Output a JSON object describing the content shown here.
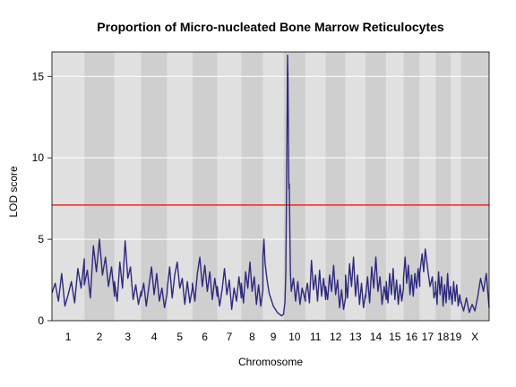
{
  "chart_data": {
    "type": "line",
    "title": "Proportion of Micro-nucleated Bone Marrow Reticulocytes",
    "xlabel": "Chromosome",
    "ylabel": "LOD score",
    "ylim": [
      0,
      16.5
    ],
    "yticks": [
      0,
      5,
      10,
      15
    ],
    "threshold": 7.1,
    "colors": {
      "line": "#2e2a7e",
      "threshold": "#e8281e",
      "band_light": "#e0e0e0",
      "band_dark": "#cfcfcf",
      "grid": "#ffffff"
    },
    "chromosomes": [
      {
        "label": "1",
        "length": 195
      },
      {
        "label": "2",
        "length": 182
      },
      {
        "label": "3",
        "length": 160
      },
      {
        "label": "4",
        "length": 157
      },
      {
        "label": "5",
        "length": 152
      },
      {
        "label": "6",
        "length": 150
      },
      {
        "label": "7",
        "length": 145
      },
      {
        "label": "8",
        "length": 130
      },
      {
        "label": "9",
        "length": 125
      },
      {
        "label": "10",
        "length": 131
      },
      {
        "label": "11",
        "length": 122
      },
      {
        "label": "12",
        "length": 120
      },
      {
        "label": "13",
        "length": 120
      },
      {
        "label": "14",
        "length": 125
      },
      {
        "label": "15",
        "length": 104
      },
      {
        "label": "16",
        "length": 98
      },
      {
        "label": "17",
        "length": 95
      },
      {
        "label": "18",
        "length": 91
      },
      {
        "label": "19",
        "length": 61
      },
      {
        "label": "X",
        "length": 171
      }
    ],
    "series": [
      {
        "profile": [
          [
            1,
            0.0,
            1.7
          ],
          [
            1,
            0.1,
            2.3
          ],
          [
            1,
            0.2,
            1.2
          ],
          [
            1,
            0.3,
            2.9
          ],
          [
            1,
            0.4,
            0.9
          ],
          [
            1,
            0.5,
            1.6
          ],
          [
            1,
            0.6,
            2.4
          ],
          [
            1,
            0.7,
            1.1
          ],
          [
            1,
            0.8,
            3.2
          ],
          [
            1,
            0.9,
            2.0
          ],
          [
            1,
            1.0,
            3.8
          ],
          [
            2,
            0.0,
            2.2
          ],
          [
            2,
            0.1,
            3.1
          ],
          [
            2,
            0.2,
            1.4
          ],
          [
            2,
            0.3,
            4.6
          ],
          [
            2,
            0.4,
            3.0
          ],
          [
            2,
            0.5,
            5.0
          ],
          [
            2,
            0.6,
            2.8
          ],
          [
            2,
            0.7,
            3.9
          ],
          [
            2,
            0.8,
            2.1
          ],
          [
            2,
            0.9,
            3.3
          ],
          [
            2,
            1.0,
            1.5
          ],
          [
            3,
            0.0,
            2.4
          ],
          [
            3,
            0.1,
            1.2
          ],
          [
            3,
            0.2,
            3.6
          ],
          [
            3,
            0.3,
            2.0
          ],
          [
            3,
            0.4,
            4.9
          ],
          [
            3,
            0.5,
            2.6
          ],
          [
            3,
            0.6,
            3.3
          ],
          [
            3,
            0.7,
            1.3
          ],
          [
            3,
            0.8,
            2.2
          ],
          [
            3,
            0.9,
            1.0
          ],
          [
            3,
            1.0,
            1.8
          ],
          [
            4,
            0.0,
            1.5
          ],
          [
            4,
            0.1,
            2.3
          ],
          [
            4,
            0.2,
            0.9
          ],
          [
            4,
            0.3,
            2.1
          ],
          [
            4,
            0.4,
            3.3
          ],
          [
            4,
            0.5,
            1.6
          ],
          [
            4,
            0.6,
            2.9
          ],
          [
            4,
            0.7,
            1.2
          ],
          [
            4,
            0.8,
            2.0
          ],
          [
            4,
            0.9,
            0.8
          ],
          [
            4,
            1.0,
            1.7
          ],
          [
            5,
            0.0,
            1.9
          ],
          [
            5,
            0.1,
            3.3
          ],
          [
            5,
            0.2,
            1.4
          ],
          [
            5,
            0.3,
            2.8
          ],
          [
            5,
            0.4,
            3.6
          ],
          [
            5,
            0.5,
            2.0
          ],
          [
            5,
            0.6,
            2.6
          ],
          [
            5,
            0.7,
            1.0
          ],
          [
            5,
            0.8,
            2.4
          ],
          [
            5,
            0.9,
            1.1
          ],
          [
            5,
            1.0,
            2.0
          ],
          [
            6,
            0.0,
            2.3
          ],
          [
            6,
            0.1,
            1.2
          ],
          [
            6,
            0.2,
            2.9
          ],
          [
            6,
            0.3,
            3.9
          ],
          [
            6,
            0.4,
            2.1
          ],
          [
            6,
            0.5,
            3.4
          ],
          [
            6,
            0.6,
            1.8
          ],
          [
            6,
            0.7,
            3.0
          ],
          [
            6,
            0.8,
            1.3
          ],
          [
            6,
            0.9,
            2.6
          ],
          [
            6,
            1.0,
            1.5
          ],
          [
            7,
            0.0,
            2.1
          ],
          [
            7,
            0.1,
            0.9
          ],
          [
            7,
            0.2,
            1.9
          ],
          [
            7,
            0.3,
            3.2
          ],
          [
            7,
            0.4,
            1.6
          ],
          [
            7,
            0.5,
            2.5
          ],
          [
            7,
            0.6,
            0.7
          ],
          [
            7,
            0.7,
            2.0
          ],
          [
            7,
            0.8,
            1.2
          ],
          [
            7,
            0.9,
            2.7
          ],
          [
            7,
            1.0,
            1.4
          ],
          [
            8,
            0.0,
            2.3
          ],
          [
            8,
            0.1,
            1.1
          ],
          [
            8,
            0.2,
            3.0
          ],
          [
            8,
            0.3,
            2.0
          ],
          [
            8,
            0.4,
            3.6
          ],
          [
            8,
            0.5,
            1.8
          ],
          [
            8,
            0.6,
            2.7
          ],
          [
            8,
            0.7,
            1.0
          ],
          [
            8,
            0.8,
            2.2
          ],
          [
            8,
            0.9,
            0.9
          ],
          [
            8,
            1.0,
            1.9
          ],
          [
            9,
            0.0,
            4.0
          ],
          [
            9,
            0.05,
            5.0
          ],
          [
            9,
            0.1,
            3.6
          ],
          [
            9,
            0.2,
            2.5
          ],
          [
            9,
            0.3,
            1.7
          ],
          [
            9,
            0.4,
            1.3
          ],
          [
            9,
            0.5,
            0.9
          ],
          [
            9,
            0.6,
            0.7
          ],
          [
            9,
            0.7,
            0.5
          ],
          [
            9,
            0.8,
            0.4
          ],
          [
            9,
            0.9,
            0.3
          ],
          [
            9,
            1.0,
            0.4
          ],
          [
            10,
            0.0,
            0.5
          ],
          [
            10,
            0.06,
            1.1
          ],
          [
            10,
            0.1,
            3.0
          ],
          [
            10,
            0.13,
            7.5
          ],
          [
            10,
            0.16,
            12.8
          ],
          [
            10,
            0.18,
            16.3
          ],
          [
            10,
            0.2,
            14.8
          ],
          [
            10,
            0.22,
            11.0
          ],
          [
            10,
            0.24,
            8.1
          ],
          [
            10,
            0.26,
            8.4
          ],
          [
            10,
            0.28,
            6.0
          ],
          [
            10,
            0.31,
            3.0
          ],
          [
            10,
            0.35,
            1.8
          ],
          [
            10,
            0.45,
            2.6
          ],
          [
            10,
            0.55,
            1.2
          ],
          [
            10,
            0.65,
            2.4
          ],
          [
            10,
            0.75,
            1.0
          ],
          [
            10,
            0.85,
            2.0
          ],
          [
            10,
            1.0,
            1.2
          ],
          [
            11,
            0.0,
            1.6
          ],
          [
            11,
            0.1,
            2.3
          ],
          [
            11,
            0.2,
            1.1
          ],
          [
            11,
            0.3,
            3.7
          ],
          [
            11,
            0.4,
            1.9
          ],
          [
            11,
            0.5,
            2.8
          ],
          [
            11,
            0.6,
            1.2
          ],
          [
            11,
            0.7,
            3.1
          ],
          [
            11,
            0.8,
            1.5
          ],
          [
            11,
            0.9,
            2.6
          ],
          [
            11,
            1.0,
            1.3
          ],
          [
            12,
            0.0,
            2.1
          ],
          [
            12,
            0.1,
            1.3
          ],
          [
            12,
            0.2,
            2.8
          ],
          [
            12,
            0.3,
            1.8
          ],
          [
            12,
            0.4,
            3.4
          ],
          [
            12,
            0.5,
            1.6
          ],
          [
            12,
            0.6,
            2.5
          ],
          [
            12,
            0.7,
            0.8
          ],
          [
            12,
            0.8,
            1.9
          ],
          [
            12,
            0.9,
            0.7
          ],
          [
            12,
            1.0,
            1.4
          ],
          [
            13,
            0.0,
            2.8
          ],
          [
            13,
            0.1,
            1.4
          ],
          [
            13,
            0.2,
            3.5
          ],
          [
            13,
            0.3,
            2.1
          ],
          [
            13,
            0.4,
            3.9
          ],
          [
            13,
            0.5,
            1.5
          ],
          [
            13,
            0.6,
            2.8
          ],
          [
            13,
            0.7,
            1.0
          ],
          [
            13,
            0.8,
            2.3
          ],
          [
            13,
            0.9,
            0.8
          ],
          [
            13,
            1.0,
            1.6
          ],
          [
            14,
            0.0,
            1.4
          ],
          [
            14,
            0.1,
            2.7
          ],
          [
            14,
            0.2,
            1.1
          ],
          [
            14,
            0.3,
            3.3
          ],
          [
            14,
            0.4,
            2.0
          ],
          [
            14,
            0.5,
            3.9
          ],
          [
            14,
            0.6,
            1.8
          ],
          [
            14,
            0.7,
            2.7
          ],
          [
            14,
            0.8,
            1.0
          ],
          [
            14,
            0.9,
            2.1
          ],
          [
            14,
            1.0,
            1.3
          ],
          [
            15,
            0.0,
            2.4
          ],
          [
            15,
            0.1,
            1.1
          ],
          [
            15,
            0.2,
            2.9
          ],
          [
            15,
            0.3,
            1.6
          ],
          [
            15,
            0.4,
            3.2
          ],
          [
            15,
            0.5,
            1.3
          ],
          [
            15,
            0.6,
            2.5
          ],
          [
            15,
            0.7,
            1.0
          ],
          [
            15,
            0.8,
            2.2
          ],
          [
            15,
            0.9,
            1.2
          ],
          [
            15,
            1.0,
            2.0
          ],
          [
            16,
            0.0,
            2.6
          ],
          [
            16,
            0.1,
            3.9
          ],
          [
            16,
            0.2,
            2.3
          ],
          [
            16,
            0.3,
            3.4
          ],
          [
            16,
            0.4,
            1.6
          ],
          [
            16,
            0.5,
            2.8
          ],
          [
            16,
            0.6,
            1.5
          ],
          [
            16,
            0.7,
            2.9
          ],
          [
            16,
            0.8,
            2.0
          ],
          [
            16,
            0.9,
            3.2
          ],
          [
            16,
            1.0,
            2.1
          ],
          [
            17,
            0.0,
            2.9
          ],
          [
            17,
            0.15,
            4.1
          ],
          [
            17,
            0.25,
            3.0
          ],
          [
            17,
            0.35,
            4.4
          ],
          [
            17,
            0.5,
            3.2
          ],
          [
            17,
            0.65,
            2.1
          ],
          [
            17,
            0.8,
            2.7
          ],
          [
            17,
            0.9,
            1.4
          ],
          [
            17,
            1.0,
            1.8
          ],
          [
            18,
            0.0,
            2.4
          ],
          [
            18,
            0.1,
            1.0
          ],
          [
            18,
            0.2,
            3.0
          ],
          [
            18,
            0.3,
            1.6
          ],
          [
            18,
            0.4,
            2.7
          ],
          [
            18,
            0.5,
            0.9
          ],
          [
            18,
            0.6,
            2.2
          ],
          [
            18,
            0.7,
            1.1
          ],
          [
            18,
            0.8,
            2.9
          ],
          [
            18,
            0.9,
            1.3
          ],
          [
            18,
            1.0,
            2.1
          ],
          [
            19,
            0.0,
            1.9
          ],
          [
            19,
            0.15,
            1.0
          ],
          [
            19,
            0.3,
            2.4
          ],
          [
            19,
            0.45,
            1.2
          ],
          [
            19,
            0.6,
            2.2
          ],
          [
            19,
            0.75,
            0.9
          ],
          [
            19,
            0.9,
            1.6
          ],
          [
            19,
            1.0,
            1.1
          ],
          [
            20,
            0.0,
            1.2
          ],
          [
            20,
            0.1,
            0.6
          ],
          [
            20,
            0.2,
            1.4
          ],
          [
            20,
            0.3,
            0.5
          ],
          [
            20,
            0.4,
            1.0
          ],
          [
            20,
            0.5,
            0.6
          ],
          [
            20,
            0.6,
            1.5
          ],
          [
            20,
            0.7,
            2.6
          ],
          [
            20,
            0.8,
            1.8
          ],
          [
            20,
            0.9,
            2.9
          ],
          [
            20,
            1.0,
            0.8
          ]
        ]
      }
    ]
  }
}
